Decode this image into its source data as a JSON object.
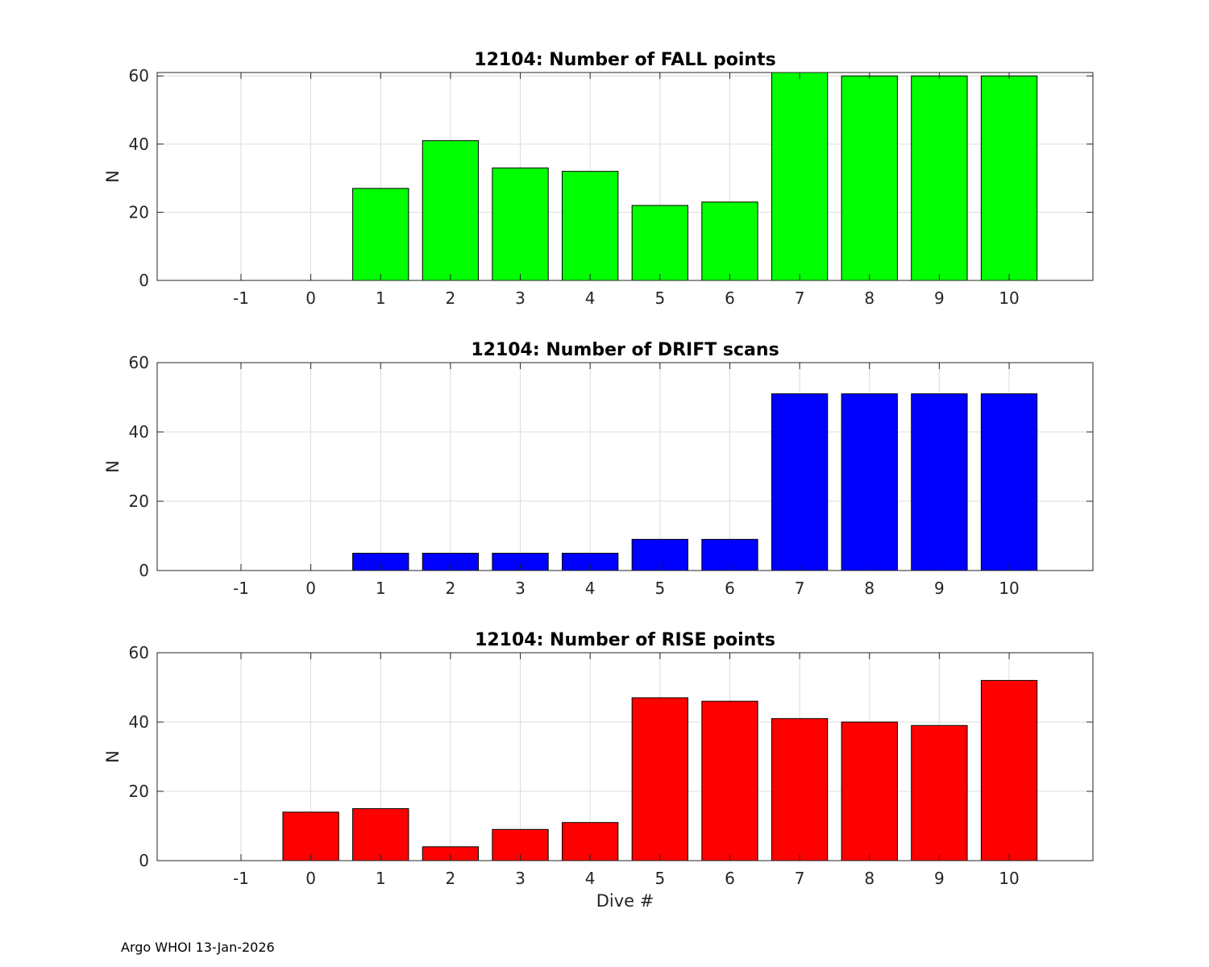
{
  "footer": "Argo WHOI 13-Jan-2026",
  "chart_data": [
    {
      "type": "bar",
      "title": "12104: Number of FALL points",
      "xlabel": "",
      "ylabel": "N",
      "categories": [
        "-1",
        "0",
        "1",
        "2",
        "3",
        "4",
        "5",
        "6",
        "7",
        "8",
        "9",
        "10"
      ],
      "values": [
        0,
        0,
        27,
        41,
        33,
        32,
        22,
        23,
        61,
        60,
        60,
        60
      ],
      "ylim": [
        0,
        61
      ],
      "yticks": [
        0,
        20,
        40,
        60
      ],
      "color": "#00ff00",
      "grid": true
    },
    {
      "type": "bar",
      "title": "12104: Number of DRIFT scans",
      "xlabel": "",
      "ylabel": "N",
      "categories": [
        "-1",
        "0",
        "1",
        "2",
        "3",
        "4",
        "5",
        "6",
        "7",
        "8",
        "9",
        "10"
      ],
      "values": [
        0,
        0,
        5,
        5,
        5,
        5,
        9,
        9,
        51,
        51,
        51,
        51
      ],
      "ylim": [
        0,
        60
      ],
      "yticks": [
        0,
        20,
        40,
        60
      ],
      "color": "#0000ff",
      "grid": true
    },
    {
      "type": "bar",
      "title": "12104: Number of RISE points",
      "xlabel": "Dive #",
      "ylabel": "N",
      "categories": [
        "-1",
        "0",
        "1",
        "2",
        "3",
        "4",
        "5",
        "6",
        "7",
        "8",
        "9",
        "10"
      ],
      "values": [
        0,
        14,
        15,
        4,
        9,
        11,
        47,
        46,
        41,
        40,
        39,
        52
      ],
      "ylim": [
        0,
        60
      ],
      "yticks": [
        0,
        20,
        40,
        60
      ],
      "color": "#ff0000",
      "grid": true
    }
  ]
}
